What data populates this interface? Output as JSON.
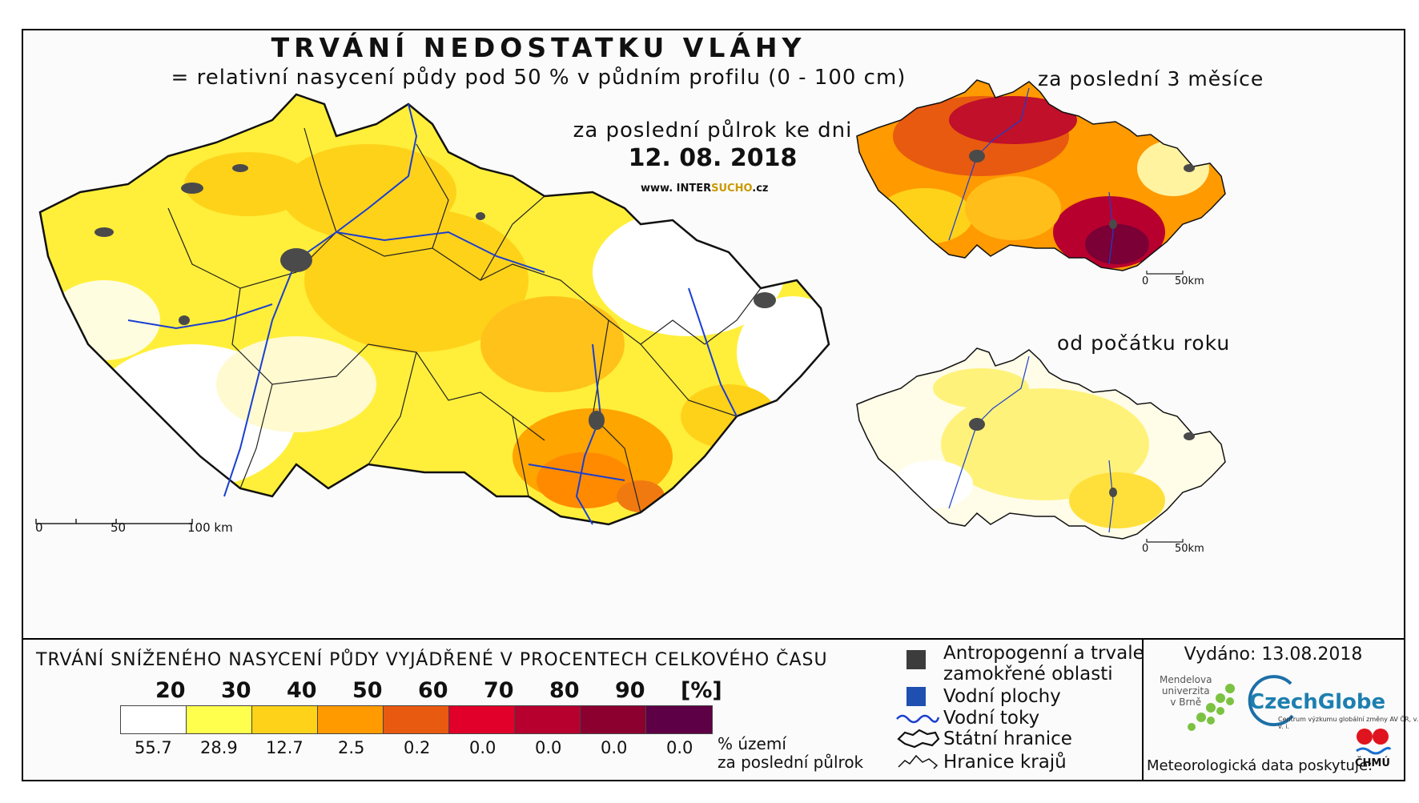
{
  "title": "TRVÁNÍ NEDOSTATKU VLÁHY",
  "subtitle": "= relativní nasycení půdy pod 50 % v půdním profilu (0 - 100 cm)",
  "main_map": {
    "period_label": "za poslední půlrok ke dni",
    "date": "12. 08. 2018",
    "website_prefix": "www. INTER",
    "website_accent": "SUCHO",
    "website_suffix": ".cz",
    "scale_labels": [
      "0",
      "50",
      "100 km"
    ]
  },
  "inset_3m": {
    "title": "za poslední 3 měsíce",
    "scale_labels": [
      "0",
      "50km"
    ]
  },
  "inset_year": {
    "title": "od počátku roku",
    "scale_labels": [
      "0",
      "50km"
    ]
  },
  "legend": {
    "title": "TRVÁNÍ SNÍŽENÉHO NASYCENÍ PŮDY VYJÁDŘENÉ V PROCENTECH CELKOVÉHO ČASU",
    "thresholds": [
      "20",
      "30",
      "40",
      "50",
      "60",
      "70",
      "80",
      "90",
      "[%]"
    ],
    "colors": [
      "#ffffff",
      "#ffff4d",
      "#ffd21a",
      "#ff9a00",
      "#e85a10",
      "#e0002a",
      "#b8002e",
      "#8c0030",
      "#5e0045"
    ],
    "percent_values": [
      "55.7",
      "28.9",
      "12.7",
      "2.5",
      "0.2",
      "0.0",
      "0.0",
      "0.0",
      "0.0"
    ],
    "percent_note_1": "% území",
    "percent_note_2": "za poslední půlrok",
    "items": {
      "urban_1": "Antropogenní a trvale",
      "urban_2": "zamokřené oblasti",
      "water": "Vodní plochy",
      "rivers": "Vodní toky",
      "border": "Státní hranice",
      "regions": "Hranice krajů"
    },
    "symbol_colors": {
      "urban": "#3c3c3c",
      "water": "#1f4fb0",
      "rivers": "#1a3fd0"
    }
  },
  "footer": {
    "issued": "Vydáno: 13.08.2018",
    "mendel_1": "Mendelova",
    "mendel_2": "univerzita",
    "mendel_3": "v Brně",
    "czechglobe": "CzechGlobe",
    "czechglobe_sub": "Centrum výzkumu globální změny AV ČR, v. v. i.",
    "meteo": "Meteorologická data poskytuje:",
    "chmu": "ČHMÚ"
  }
}
